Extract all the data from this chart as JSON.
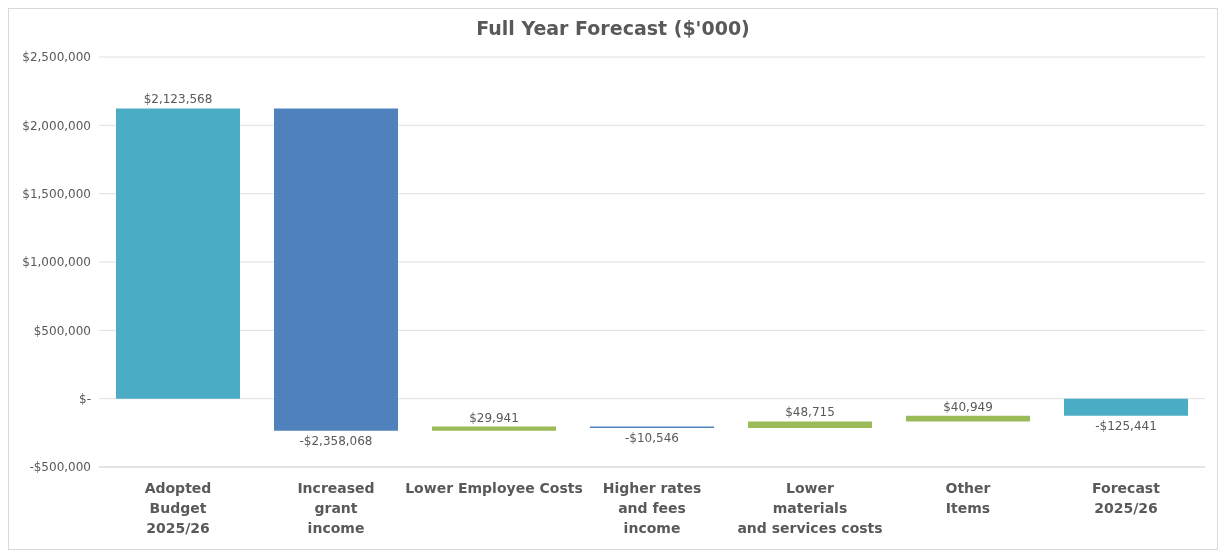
{
  "chart_data": {
    "type": "bar",
    "title": "Full Year Forecast ($'000)",
    "categories": [
      "Adopted\nBudget\n2025/26",
      "Increased\ngrant\nincome",
      "Lower Employee Costs",
      "Higher rates\nand fees\nincome",
      "Lower\nmaterials\nand services costs",
      "Other\nItems",
      "Forecast\n2025/26"
    ],
    "values": [
      2123568,
      -2358068,
      29941,
      -10546,
      48715,
      40949,
      -125441
    ],
    "base": [
      0,
      2123568,
      -234500,
      -204559,
      -215105,
      -166390,
      0
    ],
    "colors": [
      "#4bacc6",
      "#4f81bd",
      "#9bbb59",
      "#4f81bd",
      "#9bbb59",
      "#9bbb59",
      "#4bacc6"
    ],
    "value_labels": [
      "$2,123,568",
      "-$2,358,068",
      "$29,941",
      "-$10,546",
      "$48,715",
      "$40,949",
      "-$125,441"
    ],
    "ylim": [
      -500000,
      2500000
    ],
    "yticks": [
      {
        "value": -500000,
        "label": "-$500,000"
      },
      {
        "value": 0,
        "label": "$-"
      },
      {
        "value": 500000,
        "label": "$500,000"
      },
      {
        "value": 1000000,
        "label": "$1,000,000"
      },
      {
        "value": 1500000,
        "label": "$1,500,000"
      },
      {
        "value": 2000000,
        "label": "$2,000,000"
      },
      {
        "value": 2500000,
        "label": "$2,500,000"
      }
    ],
    "grid": "y",
    "legend": false
  }
}
